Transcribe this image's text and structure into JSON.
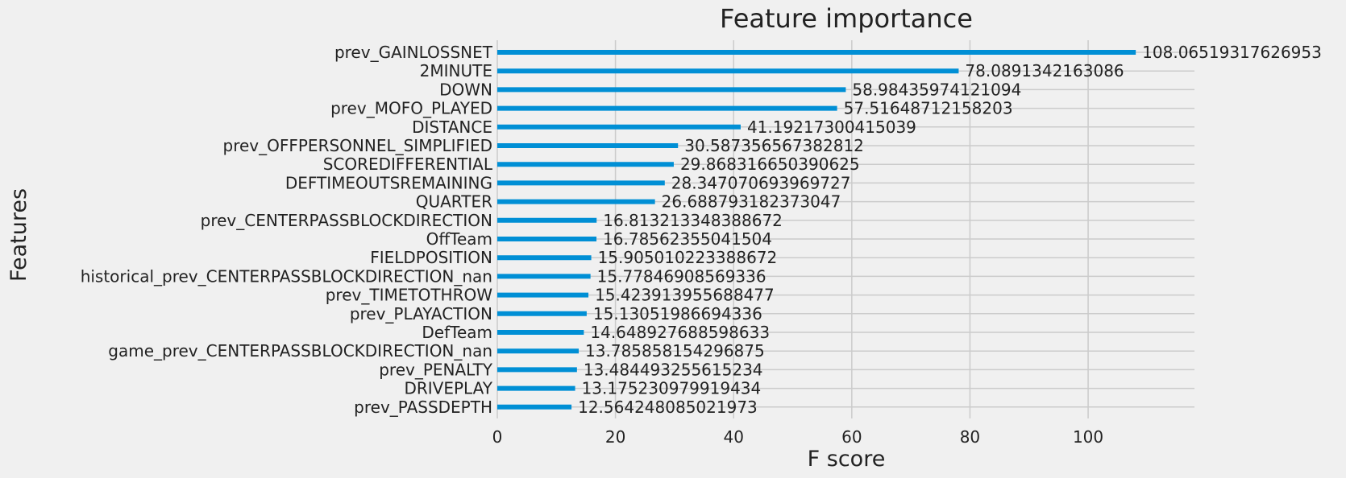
{
  "chart_data": {
    "type": "bar",
    "orientation": "horizontal",
    "title": "Feature importance",
    "xlabel": "F score",
    "ylabel": "Features",
    "xlim": [
      0,
      118
    ],
    "xticks": [
      "0",
      "20",
      "40",
      "60",
      "80",
      "100"
    ],
    "grid": true,
    "bar_color": "#008fd5",
    "background_color": "#f0f0f0",
    "categories": [
      "prev_GAINLOSSNET",
      "2MINUTE",
      "DOWN",
      "prev_MOFO_PLAYED",
      "DISTANCE",
      "prev_OFFPERSONNEL_SIMPLIFIED",
      "SCOREDIFFERENTIAL",
      "DEFTIMEOUTSREMAINING",
      "QUARTER",
      "prev_CENTERPASSBLOCKDIRECTION",
      "OffTeam",
      "FIELDPOSITION",
      "historical_prev_CENTERPASSBLOCKDIRECTION_nan",
      "prev_TIMETOTHROW",
      "prev_PLAYACTION",
      "DefTeam",
      "game_prev_CENTERPASSBLOCKDIRECTION_nan",
      "prev_PENALTY",
      "DRIVEPLAY",
      "prev_PASSDEPTH"
    ],
    "values": [
      108.06519317626953,
      78.0891342163086,
      58.98435974121094,
      57.51648712158203,
      41.19217300415039,
      30.587356567382812,
      29.868316650390625,
      28.347070693969727,
      26.688793182373047,
      16.813213348388672,
      16.78562355041504,
      15.905010223388672,
      15.77846908569336,
      15.423913955688477,
      15.13051986694336,
      14.648927688598633,
      13.785858154296875,
      13.484493255615234,
      13.175230979919434,
      12.564248085021973
    ],
    "value_labels": [
      "108.06519317626953",
      "78.0891342163086",
      "58.98435974121094",
      "57.51648712158203",
      "41.19217300415039",
      "30.587356567382812",
      "29.868316650390625",
      "28.347070693969727",
      "26.688793182373047",
      "16.813213348388672",
      "16.78562355041504",
      "15.905010223388672",
      "15.77846908569336",
      "15.423913955688477",
      "15.13051986694336",
      "14.648927688598633",
      "13.785858154296875",
      "13.484493255615234",
      "13.175230979919434",
      "12.564248085021973"
    ]
  }
}
